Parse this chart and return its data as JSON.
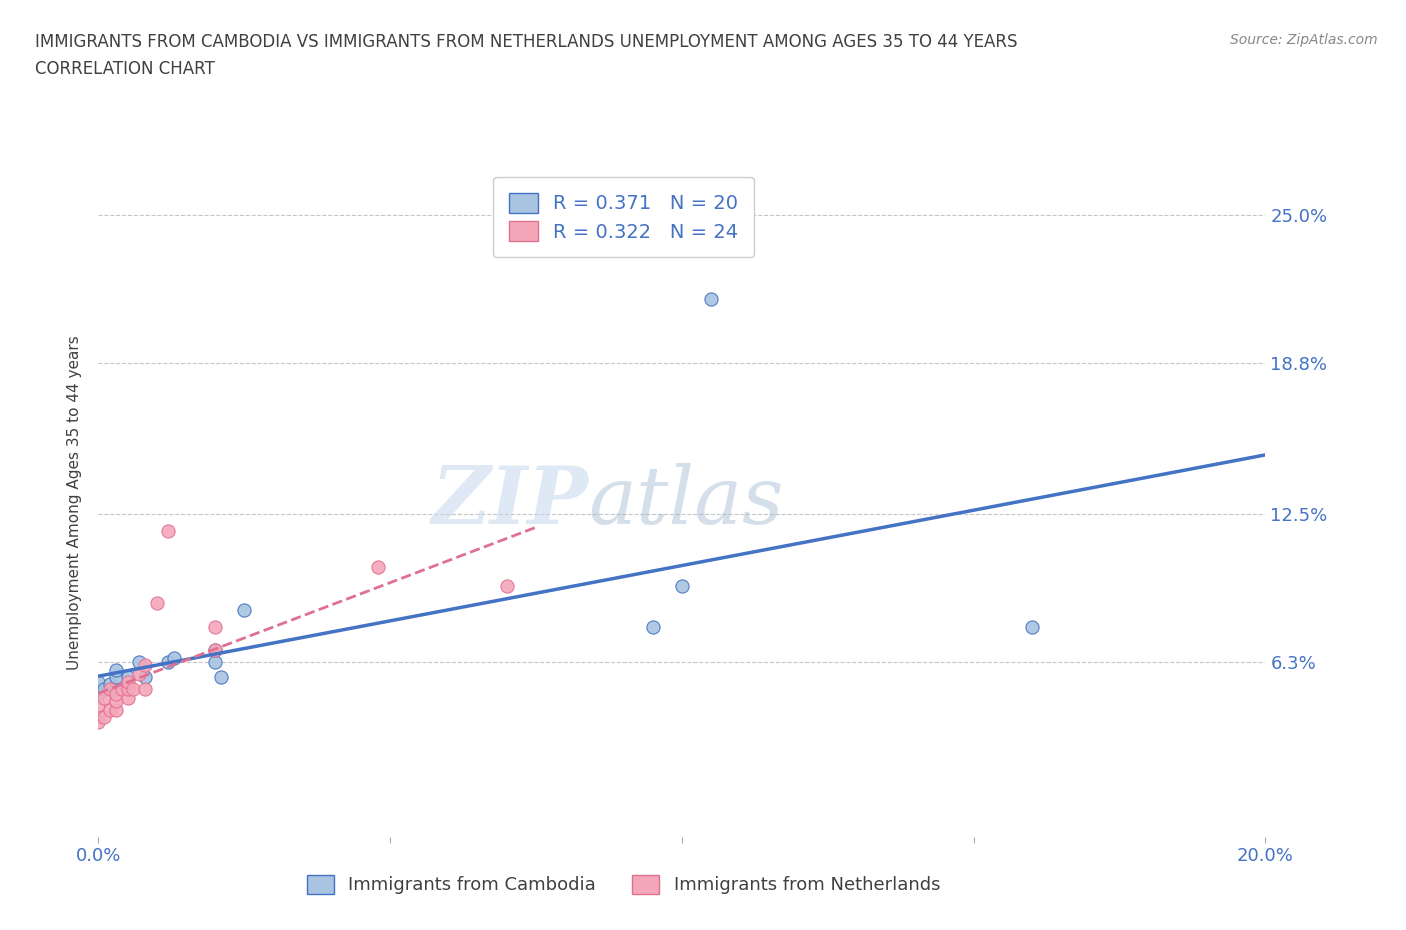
{
  "title_line1": "IMMIGRANTS FROM CAMBODIA VS IMMIGRANTS FROM NETHERLANDS UNEMPLOYMENT AMONG AGES 35 TO 44 YEARS",
  "title_line2": "CORRELATION CHART",
  "source_text": "Source: ZipAtlas.com",
  "ylabel": "Unemployment Among Ages 35 to 44 years",
  "xlim": [
    0.0,
    0.2
  ],
  "ylim": [
    -0.01,
    0.27
  ],
  "yticks": [
    0.063,
    0.125,
    0.188,
    0.25
  ],
  "ytick_labels": [
    "6.3%",
    "12.5%",
    "18.8%",
    "25.0%"
  ],
  "xticks": [
    0.0,
    0.05,
    0.1,
    0.15,
    0.2
  ],
  "xtick_labels": [
    "0.0%",
    "",
    "",
    "",
    "20.0%"
  ],
  "watermark_zip": "ZIP",
  "watermark_atlas": "atlas",
  "R_cambodia": 0.371,
  "N_cambodia": 20,
  "R_netherlands": 0.322,
  "N_netherlands": 24,
  "cambodia_color": "#a8c4e0",
  "netherlands_color": "#f4a7b9",
  "cambodia_line_color": "#4472c4",
  "netherlands_line_color": "#e07090",
  "title_color": "#404040",
  "axis_label_color": "#4472c4",
  "background_color": "#ffffff",
  "cambodia_x": [
    0.0,
    0.0,
    0.001,
    0.002,
    0.003,
    0.003,
    0.003,
    0.005,
    0.007,
    0.008,
    0.012,
    0.013,
    0.02,
    0.02,
    0.021,
    0.025,
    0.095,
    0.1,
    0.105,
    0.16
  ],
  "cambodia_y": [
    0.05,
    0.055,
    0.052,
    0.054,
    0.052,
    0.057,
    0.06,
    0.057,
    0.063,
    0.057,
    0.063,
    0.065,
    0.063,
    0.068,
    0.057,
    0.085,
    0.078,
    0.095,
    0.215,
    0.078
  ],
  "netherlands_x": [
    0.0,
    0.0,
    0.0,
    0.001,
    0.001,
    0.002,
    0.002,
    0.003,
    0.003,
    0.003,
    0.004,
    0.005,
    0.005,
    0.005,
    0.006,
    0.007,
    0.008,
    0.008,
    0.01,
    0.012,
    0.02,
    0.02,
    0.048,
    0.07
  ],
  "netherlands_y": [
    0.04,
    0.045,
    0.038,
    0.04,
    0.048,
    0.043,
    0.052,
    0.043,
    0.047,
    0.05,
    0.052,
    0.048,
    0.052,
    0.055,
    0.052,
    0.058,
    0.052,
    0.062,
    0.088,
    0.118,
    0.068,
    0.078,
    0.103,
    0.095
  ],
  "neth_line_xend": 0.075,
  "cam_line_ystart": 0.062,
  "cam_line_yend": 0.165
}
